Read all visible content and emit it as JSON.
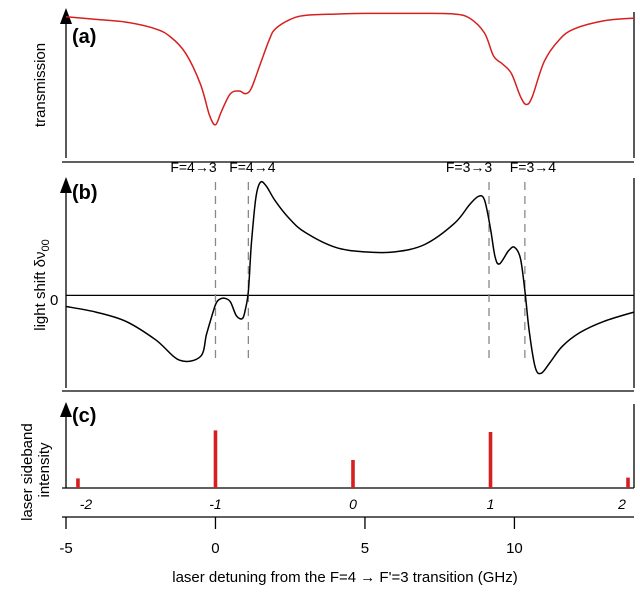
{
  "chart_data": [
    {
      "panel": "(a)",
      "type": "line",
      "ylabel": "transmission",
      "color": "#d62020",
      "xlim": [
        -5,
        14
      ],
      "series": [
        {
          "x": [
            -5,
            -4,
            -3,
            -2,
            -1.5,
            -1,
            -0.5,
            -0.2,
            0,
            0.2,
            0.5,
            0.8,
            1.0,
            1.2,
            1.5,
            1.8,
            2,
            2.5,
            3,
            4,
            5,
            6,
            7,
            8,
            8.5,
            9,
            9.3,
            9.6,
            9.9,
            10.2,
            10.4,
            10.6,
            11,
            11.5,
            12,
            13,
            14
          ],
          "y": [
            0.95,
            0.93,
            0.91,
            0.86,
            0.8,
            0.68,
            0.45,
            0.22,
            0.15,
            0.25,
            0.38,
            0.4,
            0.38,
            0.42,
            0.6,
            0.78,
            0.86,
            0.93,
            0.96,
            0.97,
            0.975,
            0.975,
            0.975,
            0.97,
            0.94,
            0.83,
            0.66,
            0.6,
            0.53,
            0.36,
            0.3,
            0.36,
            0.62,
            0.78,
            0.86,
            0.92,
            0.94
          ]
        }
      ]
    },
    {
      "panel": "(b)",
      "type": "line",
      "ylabel": "light shift δν",
      "ylabel_sub": "00",
      "zero_label": "0",
      "color": "#000000",
      "xlim": [
        -5,
        14
      ],
      "ylim": [
        -1.0,
        1.3
      ],
      "annotations": [
        {
          "text": "F=4→3",
          "x": 0.0
        },
        {
          "text": "F=4→4",
          "x": 1.1
        },
        {
          "text": "F=3→3",
          "x": 9.15
        },
        {
          "text": "F=3→4",
          "x": 10.35
        }
      ],
      "series": [
        {
          "x": [
            -5,
            -4,
            -3,
            -2,
            -1.2,
            -0.5,
            -0.3,
            -0.1,
            0,
            0.1,
            0.3,
            0.5,
            0.7,
            0.9,
            1.0,
            1.1,
            1.2,
            1.35,
            1.5,
            1.7,
            2,
            2.5,
            3,
            4,
            5,
            6,
            7,
            8,
            8.5,
            8.8,
            9,
            9.2,
            9.35,
            9.5,
            9.8,
            10,
            10.2,
            10.35,
            10.5,
            10.7,
            10.9,
            11.2,
            11.6,
            12.2,
            13,
            14
          ],
          "y": [
            -0.12,
            -0.18,
            -0.28,
            -0.48,
            -0.7,
            -0.66,
            -0.42,
            -0.2,
            -0.1,
            -0.05,
            -0.03,
            -0.07,
            -0.22,
            -0.25,
            -0.15,
            0.05,
            0.55,
            1.05,
            1.22,
            1.18,
            1.02,
            0.82,
            0.68,
            0.52,
            0.47,
            0.47,
            0.55,
            0.78,
            0.98,
            1.07,
            1.03,
            0.72,
            0.42,
            0.34,
            0.48,
            0.52,
            0.4,
            0.05,
            -0.4,
            -0.78,
            -0.84,
            -0.72,
            -0.55,
            -0.4,
            -0.28,
            -0.18
          ]
        }
      ]
    },
    {
      "panel": "(c)",
      "type": "bar",
      "ylabel_lines": [
        "laser sideband",
        "intensity"
      ],
      "color": "#d62020",
      "xlim": [
        -5,
        14
      ],
      "x": [
        -4.6,
        0.0,
        4.6,
        9.2,
        13.8
      ],
      "values": [
        0.12,
        0.72,
        0.35,
        0.7,
        0.13
      ],
      "sideband_labels": [
        "-2",
        "-1",
        "0",
        "1",
        "2"
      ]
    }
  ],
  "x_axis": {
    "ticks": [
      -5,
      0,
      5,
      10
    ],
    "tick_labels": [
      "-5",
      "0",
      "5",
      "10"
    ],
    "xlabel": "laser detuning from the F=4 → F'=3 transition (GHz)"
  }
}
